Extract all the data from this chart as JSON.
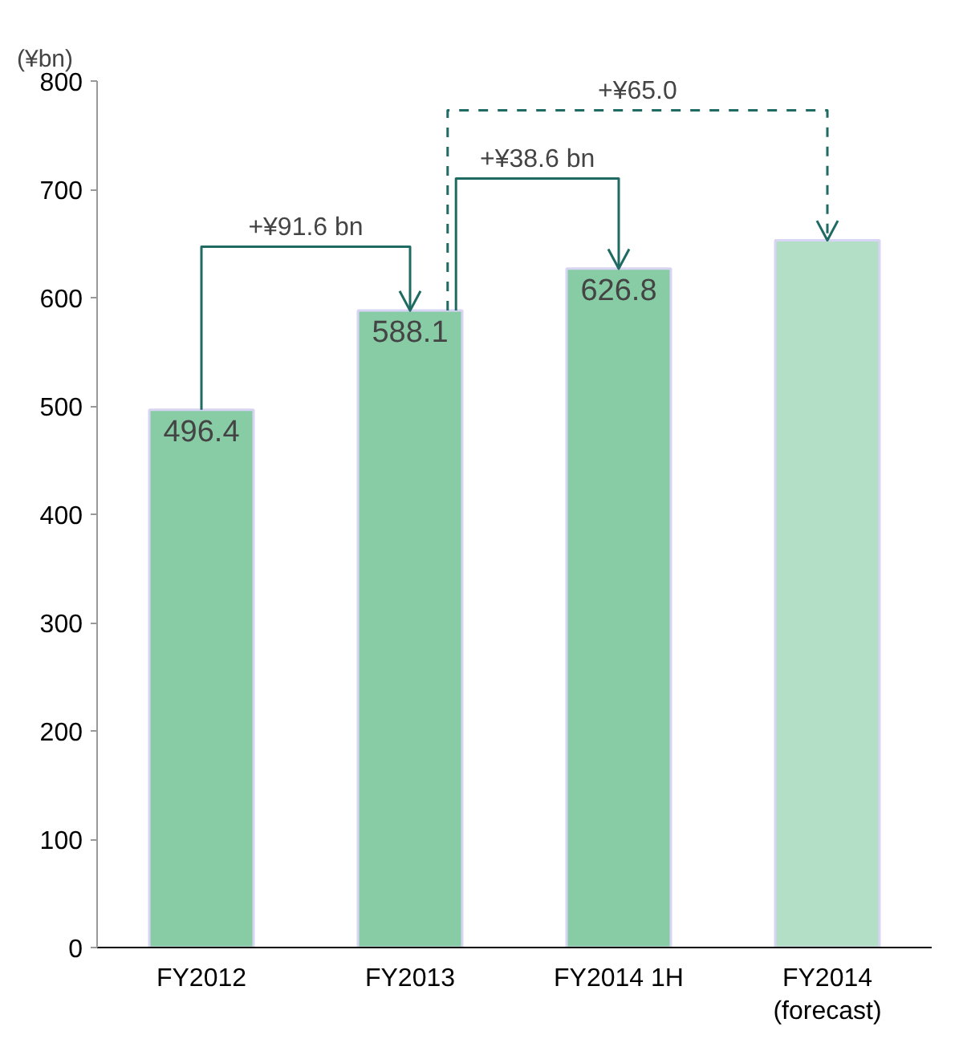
{
  "chart_data": {
    "type": "bar",
    "ylabel": "(¥bn)",
    "categories": [
      "FY2012",
      "FY2013",
      "FY2014 1H",
      "FY2014\n(forecast)"
    ],
    "values": [
      496.4,
      588.1,
      626.8,
      653
    ],
    "colors": [
      "#88cca6",
      "#88cca6",
      "#88cca6",
      "#b3dfc6"
    ],
    "value_labels": [
      "496.4",
      "588.1",
      "626.8",
      null
    ],
    "ylim": [
      0,
      800
    ],
    "yticks": [
      0,
      100,
      200,
      300,
      400,
      500,
      600,
      700,
      800
    ],
    "grid": false,
    "annotations": [
      "+¥91.6 bn",
      "+¥38.6 bn",
      "+¥65.0"
    ]
  }
}
